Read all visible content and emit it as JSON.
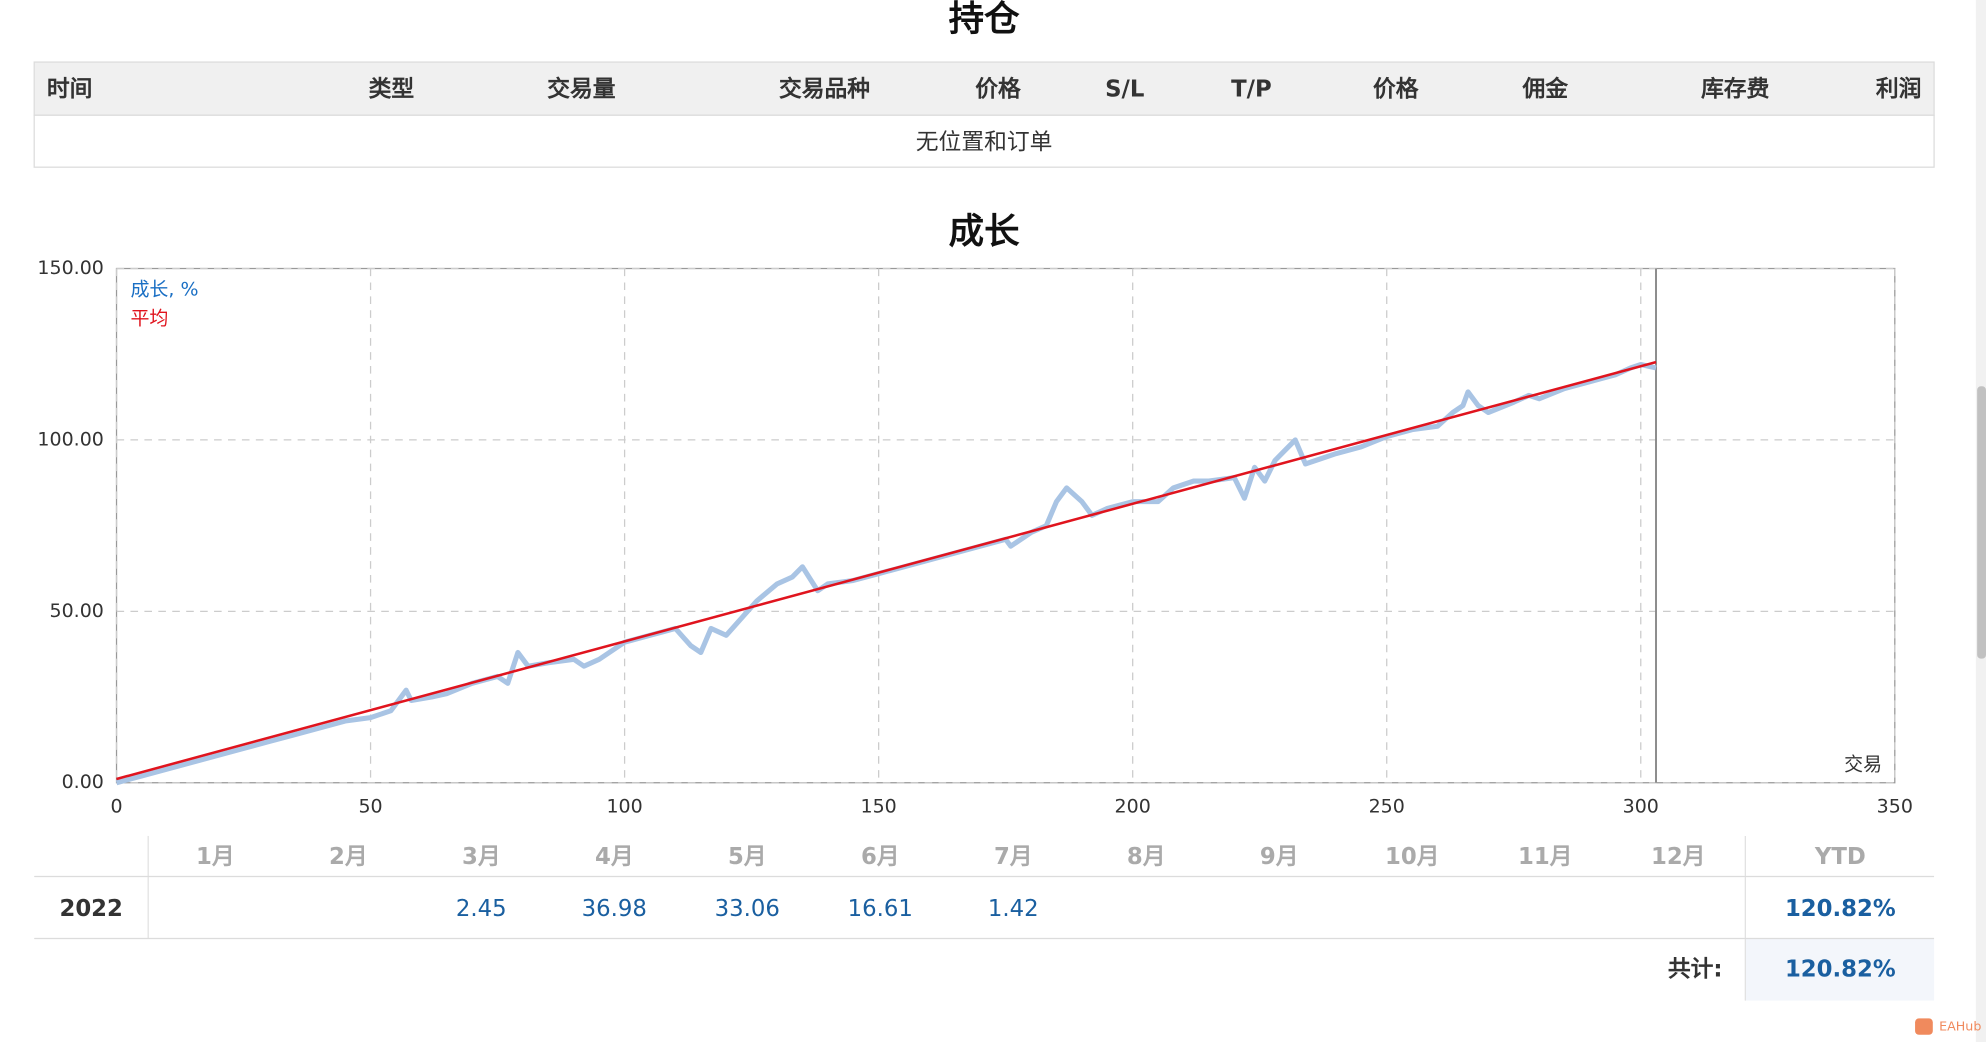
{
  "positions": {
    "title": "持仓",
    "headers": [
      "时间",
      "类型",
      "交易量",
      "交易品种",
      "价格",
      "S/L",
      "T/P",
      "价格",
      "佣金",
      "库存费",
      "利润"
    ],
    "empty_message": "无位置和订单"
  },
  "chart_data": {
    "type": "line",
    "title": "成长",
    "xlabel": "交易",
    "xlim": [
      0,
      350
    ],
    "xticks": [
      0,
      50,
      100,
      150,
      200,
      250,
      300,
      350
    ],
    "ylim": [
      0,
      150
    ],
    "yticks": [
      {
        "value": 0,
        "label": "0.00"
      },
      {
        "value": 50,
        "label": "50.00"
      },
      {
        "value": 100,
        "label": "100.00"
      },
      {
        "value": 150,
        "label": "150.00"
      }
    ],
    "grid": true,
    "legend": "upper left",
    "marker_x": 303,
    "series": [
      {
        "name": "成长, %",
        "color": "#a9c4e4",
        "x": [
          0,
          5,
          10,
          15,
          20,
          25,
          30,
          35,
          40,
          45,
          50,
          54,
          57,
          58,
          62,
          65,
          70,
          75,
          77,
          79,
          81,
          85,
          90,
          92,
          95,
          100,
          105,
          110,
          113,
          115,
          117,
          120,
          123,
          126,
          130,
          133,
          135,
          138,
          140,
          145,
          150,
          155,
          160,
          165,
          170,
          175,
          176,
          180,
          183,
          185,
          187,
          190,
          192,
          195,
          200,
          205,
          208,
          212,
          215,
          220,
          222,
          224,
          226,
          228,
          230,
          232,
          234,
          238,
          240,
          245,
          250,
          255,
          260,
          263,
          265,
          266,
          268,
          270,
          275,
          278,
          280,
          285,
          290,
          295,
          298,
          300,
          303
        ],
        "values": [
          0,
          2,
          4,
          6,
          8,
          10,
          12,
          14,
          16,
          18,
          19,
          21,
          27,
          24,
          25,
          26,
          29,
          31,
          29,
          38,
          34,
          35,
          36,
          34,
          36,
          41,
          43,
          45,
          40,
          38,
          45,
          43,
          48,
          53,
          58,
          60,
          63,
          56,
          58,
          59,
          61,
          63,
          65,
          67,
          69,
          71,
          69,
          73,
          75,
          82,
          86,
          82,
          78,
          80,
          82,
          82,
          86,
          88,
          88,
          89,
          83,
          92,
          88,
          94,
          97,
          100,
          93,
          95,
          96,
          98,
          101,
          103,
          104,
          108,
          110,
          114,
          110,
          108,
          111,
          113,
          112,
          115,
          117,
          119,
          121,
          122,
          121
        ]
      },
      {
        "name": "平均",
        "color": "#e0141e",
        "x": [
          0,
          303
        ],
        "values": [
          1.1,
          122.7
        ]
      }
    ]
  },
  "returns_table": {
    "headers": [
      "1月",
      "2月",
      "3月",
      "4月",
      "5月",
      "6月",
      "7月",
      "8月",
      "9月",
      "10月",
      "11月",
      "12月",
      "YTD"
    ],
    "rows": [
      {
        "year": "2022",
        "values": [
          null,
          null,
          "2.45",
          "36.98",
          "33.06",
          "16.61",
          "1.42",
          null,
          null,
          null,
          null,
          null
        ],
        "ytd": "120.82%"
      }
    ],
    "total_label": "共计:",
    "total": "120.82%"
  },
  "watermark": "EAHub"
}
